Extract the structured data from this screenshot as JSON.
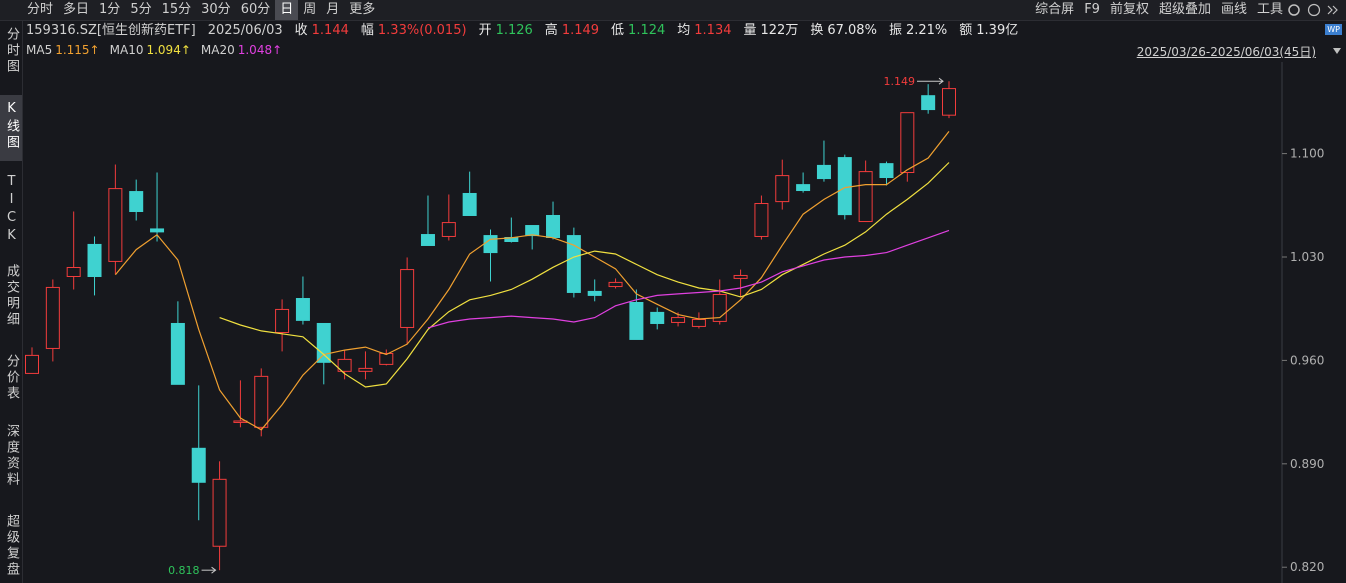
{
  "toolbar": {
    "periods": [
      "分时",
      "多日",
      "1分",
      "5分",
      "15分",
      "30分",
      "60分",
      "日",
      "周",
      "月",
      "更多"
    ],
    "active_period": 7,
    "tools": [
      "综合屏",
      "F9",
      "前复权",
      "超级叠加",
      "画线",
      "工具"
    ]
  },
  "side_tabs": {
    "items": [
      "分时图",
      "K线图",
      "TICK",
      "成交明细",
      "分价表",
      "深度资料",
      "超级复盘"
    ],
    "active": 1
  },
  "quote": {
    "code": "159316.SZ[恒生创新药ETF]",
    "date": "2025/06/03",
    "items": [
      {
        "label": "收",
        "value": "1.144",
        "tone": "up"
      },
      {
        "label": "幅",
        "value": "1.33%(0.015)",
        "tone": "up"
      },
      {
        "label": "开",
        "value": "1.126",
        "tone": "down"
      },
      {
        "label": "高",
        "value": "1.149",
        "tone": "up"
      },
      {
        "label": "低",
        "value": "1.124",
        "tone": "down"
      },
      {
        "label": "均",
        "value": "1.134",
        "tone": "up"
      },
      {
        "label": "量",
        "value": "122万",
        "tone": "flat"
      },
      {
        "label": "换",
        "value": "67.08%",
        "tone": "flat"
      },
      {
        "label": "振",
        "value": "2.21%",
        "tone": "flat"
      },
      {
        "label": "额",
        "value": "1.39亿",
        "tone": "flat"
      }
    ]
  },
  "range_label": "2025/03/26-2025/06/03(45日)",
  "badge": "WP",
  "chart_data": {
    "type": "candlestick",
    "up_color": "#f23c3c",
    "down_color": "#3fd2d0",
    "ylim": [
      0.81,
      1.162
    ],
    "yticks": [
      {
        "value": 0.82,
        "label": "0.820"
      },
      {
        "value": 0.89,
        "label": "0.890"
      },
      {
        "value": 0.96,
        "label": "0.960"
      },
      {
        "value": 1.03,
        "label": "1.030"
      },
      {
        "value": 1.1,
        "label": "1.100"
      }
    ],
    "open": [
      0.9512,
      0.9681,
      1.0168,
      1.0385,
      1.027,
      1.0743,
      1.049,
      0.985,
      0.9005,
      0.8342,
      0.918,
      0.9147,
      0.9789,
      1.0019,
      0.985,
      0.9526,
      0.9526,
      0.9573,
      0.9823,
      1.0452,
      1.0439,
      1.073,
      1.0445,
      1.0432,
      1.0513,
      1.0581,
      1.0445,
      1.0067,
      1.01,
      0.9992,
      0.9925,
      0.9857,
      0.983,
      0.9864,
      1.0155,
      1.0439,
      1.0675,
      1.079,
      1.092,
      1.0973,
      1.054,
      1.0932,
      1.0872,
      1.1392,
      1.126
    ],
    "high": [
      0.9688,
      1.0148,
      1.0608,
      1.0439,
      1.0926,
      1.0824,
      1.0872,
      1.0,
      0.9431,
      0.8917,
      0.9465,
      0.9546,
      1.0013,
      1.0168,
      0.985,
      0.9668,
      0.9661,
      0.9674,
      1.0297,
      1.0716,
      1.0723,
      1.0878,
      1.0486,
      1.0567,
      1.0513,
      1.0675,
      1.0499,
      1.0148,
      1.0155,
      1.008,
      0.9958,
      0.9925,
      0.9925,
      1.0148,
      1.0215,
      1.0716,
      1.0959,
      1.0872,
      1.1088,
      1.0993,
      1.0953,
      1.0946,
      1.1277,
      1.147,
      1.149
    ],
    "low": [
      0.9512,
      0.9593,
      1.008,
      1.004,
      1.0182,
      1.0547,
      1.0405,
      0.9438,
      0.8518,
      0.818,
      0.9147,
      0.9086,
      0.9661,
      0.9843,
      0.9438,
      0.9472,
      0.9472,
      0.9566,
      0.9708,
      1.0378,
      1.0412,
      1.0581,
      1.0134,
      1.0398,
      1.0351,
      1.0419,
      1.0026,
      1.0,
      1.0087,
      0.9742,
      0.981,
      0.983,
      0.9816,
      0.9843,
      1.0026,
      1.0418,
      1.0621,
      1.0736,
      1.081,
      1.0554,
      1.054,
      1.0784,
      1.081,
      1.127,
      1.124
    ],
    "close": [
      0.9634,
      1.0094,
      1.0229,
      1.0168,
      1.0763,
      1.0608,
      1.047,
      0.9438,
      0.8775,
      0.8795,
      0.919,
      0.9492,
      0.9945,
      0.9871,
      0.9587,
      0.9607,
      0.9546,
      0.9647,
      1.0215,
      1.0378,
      1.0533,
      1.0581,
      1.033,
      1.0405,
      1.0445,
      1.0432,
      1.006,
      1.004,
      1.0128,
      0.9742,
      0.985,
      0.989,
      0.9877,
      1.0046,
      1.0175,
      1.0662,
      1.0851,
      1.075,
      1.0831,
      1.0587,
      1.0878,
      1.0838,
      1.1277,
      1.1298,
      1.144
    ],
    "high_label": "1.149",
    "low_label": "0.818",
    "series": [
      {
        "name": "MA5",
        "color": "#f0a030",
        "value_label": "1.115↑",
        "values": [
          null,
          null,
          null,
          null,
          1.018,
          1.035,
          1.045,
          1.028,
          0.981,
          0.94,
          0.921,
          0.913,
          0.93,
          0.95,
          0.964,
          0.967,
          0.969,
          0.964,
          0.971,
          0.988,
          1.008,
          1.032,
          1.042,
          1.043,
          1.045,
          1.043,
          1.038,
          1.03,
          1.022,
          1.005,
          0.998,
          0.991,
          0.988,
          0.989,
          1.001,
          1.016,
          1.038,
          1.059,
          1.069,
          1.077,
          1.079,
          1.079,
          1.089,
          1.097,
          1.115
        ]
      },
      {
        "name": "MA10",
        "color": "#f0e040",
        "value_label": "1.094↑",
        "values": [
          null,
          null,
          null,
          null,
          null,
          null,
          null,
          null,
          null,
          0.989,
          0.984,
          0.98,
          0.978,
          0.976,
          0.964,
          0.951,
          0.942,
          0.944,
          0.961,
          0.981,
          0.993,
          1.001,
          1.004,
          1.008,
          1.015,
          1.023,
          1.03,
          1.034,
          1.032,
          1.025,
          1.018,
          1.013,
          1.009,
          1.007,
          1.003,
          1.008,
          1.018,
          1.025,
          1.032,
          1.038,
          1.047,
          1.059,
          1.069,
          1.08,
          1.094
        ]
      },
      {
        "name": "MA20",
        "color": "#e040e0",
        "value_label": "1.048↑",
        "values": [
          null,
          null,
          null,
          null,
          null,
          null,
          null,
          null,
          null,
          null,
          null,
          null,
          null,
          null,
          null,
          null,
          null,
          null,
          null,
          0.982,
          0.986,
          0.988,
          0.989,
          0.99,
          0.989,
          0.988,
          0.986,
          0.989,
          0.997,
          1.001,
          1.004,
          1.005,
          1.006,
          1.007,
          1.009,
          1.013,
          1.02,
          1.024,
          1.028,
          1.03,
          1.031,
          1.033,
          1.038,
          1.043,
          1.048
        ]
      }
    ]
  }
}
